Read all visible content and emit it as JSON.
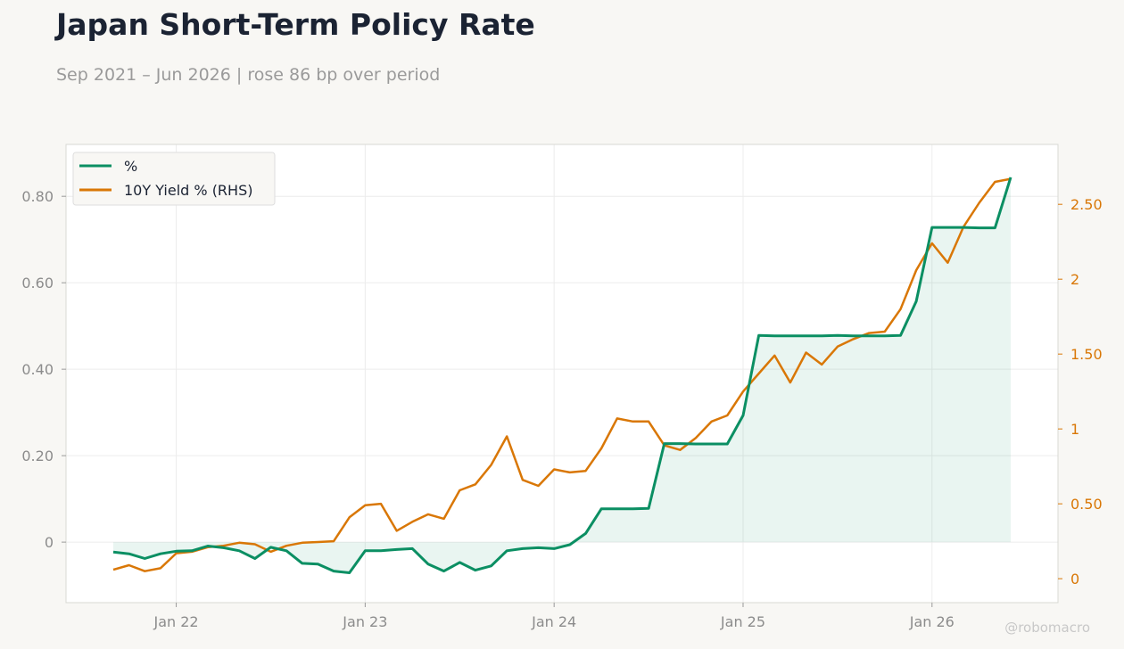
{
  "header": {
    "title": "Japan Short-Term Policy Rate",
    "subtitle": "Sep 2021 – Jun 2026 | rose 86 bp over period"
  },
  "watermark": "@robomacro",
  "colors": {
    "policy": "#0b8f63",
    "yield": "#d97706",
    "grid": "#ececec",
    "frame": "#d9d9d3"
  },
  "chart_data": {
    "type": "line",
    "title": "Japan Short-Term Policy Rate",
    "x_ticks": [
      "Jan 22",
      "Jan 23",
      "Jan 24",
      "Jan 25",
      "Jan 26"
    ],
    "x_tick_months": [
      "2022-01",
      "2023-01",
      "2024-01",
      "2025-01",
      "2026-01"
    ],
    "x_range": [
      "2021-06",
      "2026-09"
    ],
    "ylim_left": [
      -0.14,
      0.92
    ],
    "ylim_right": [
      -0.16,
      2.9
    ],
    "y_ticks_left": [
      {
        "value": 0.8,
        "label": "0.80"
      },
      {
        "value": 0.6,
        "label": "0.60"
      },
      {
        "value": 0.4,
        "label": "0.40"
      },
      {
        "value": 0.2,
        "label": "0.20"
      },
      {
        "value": 0.0,
        "label": "0"
      }
    ],
    "y_ticks_right": [
      {
        "value": 2.5,
        "label": "2.50"
      },
      {
        "value": 2.0,
        "label": "2"
      },
      {
        "value": 1.5,
        "label": "1.50"
      },
      {
        "value": 1.0,
        "label": "1"
      },
      {
        "value": 0.5,
        "label": "0.50"
      },
      {
        "value": 0.0,
        "label": "0"
      }
    ],
    "legend": {
      "placement": "top-left"
    },
    "grid": true,
    "series": [
      {
        "name": "%",
        "axis": "left",
        "fill_to_zero": true,
        "points": [
          [
            "2021-09",
            -0.023
          ],
          [
            "2021-10",
            -0.027
          ],
          [
            "2021-11",
            -0.038
          ],
          [
            "2021-12",
            -0.027
          ],
          [
            "2022-01",
            -0.021
          ],
          [
            "2022-02",
            -0.02
          ],
          [
            "2022-03",
            -0.009
          ],
          [
            "2022-04",
            -0.013
          ],
          [
            "2022-05",
            -0.02
          ],
          [
            "2022-06",
            -0.038
          ],
          [
            "2022-07",
            -0.012
          ],
          [
            "2022-08",
            -0.02
          ],
          [
            "2022-09",
            -0.049
          ],
          [
            "2022-10",
            -0.051
          ],
          [
            "2022-11",
            -0.067
          ],
          [
            "2022-12",
            -0.071
          ],
          [
            "2023-01",
            -0.02
          ],
          [
            "2023-02",
            -0.02
          ],
          [
            "2023-03",
            -0.017
          ],
          [
            "2023-04",
            -0.015
          ],
          [
            "2023-05",
            -0.051
          ],
          [
            "2023-06",
            -0.067
          ],
          [
            "2023-07",
            -0.047
          ],
          [
            "2023-08",
            -0.065
          ],
          [
            "2023-09",
            -0.055
          ],
          [
            "2023-10",
            -0.02
          ],
          [
            "2023-11",
            -0.015
          ],
          [
            "2023-12",
            -0.013
          ],
          [
            "2024-01",
            -0.015
          ],
          [
            "2024-02",
            -0.006
          ],
          [
            "2024-03",
            0.02
          ],
          [
            "2024-04",
            0.077
          ],
          [
            "2024-05",
            0.077
          ],
          [
            "2024-06",
            0.077
          ],
          [
            "2024-07",
            0.078
          ],
          [
            "2024-08",
            0.228
          ],
          [
            "2024-09",
            0.228
          ],
          [
            "2024-10",
            0.227
          ],
          [
            "2024-11",
            0.227
          ],
          [
            "2024-12",
            0.227
          ],
          [
            "2025-01",
            0.293
          ],
          [
            "2025-02",
            0.478
          ],
          [
            "2025-03",
            0.477
          ],
          [
            "2025-04",
            0.477
          ],
          [
            "2025-05",
            0.477
          ],
          [
            "2025-06",
            0.477
          ],
          [
            "2025-07",
            0.478
          ],
          [
            "2025-08",
            0.477
          ],
          [
            "2025-09",
            0.477
          ],
          [
            "2025-10",
            0.477
          ],
          [
            "2025-11",
            0.478
          ],
          [
            "2025-12",
            0.557
          ],
          [
            "2026-01",
            0.728
          ],
          [
            "2026-02",
            0.728
          ],
          [
            "2026-03",
            0.728
          ],
          [
            "2026-04",
            0.727
          ],
          [
            "2026-05",
            0.727
          ],
          [
            "2026-06",
            0.844
          ]
        ]
      },
      {
        "name": "10Y Yield % (RHS)",
        "axis": "right",
        "points": [
          [
            "2021-09",
            0.06
          ],
          [
            "2021-10",
            0.09
          ],
          [
            "2021-11",
            0.05
          ],
          [
            "2021-12",
            0.07
          ],
          [
            "2022-01",
            0.17
          ],
          [
            "2022-02",
            0.18
          ],
          [
            "2022-03",
            0.21
          ],
          [
            "2022-04",
            0.22
          ],
          [
            "2022-05",
            0.24
          ],
          [
            "2022-06",
            0.23
          ],
          [
            "2022-07",
            0.18
          ],
          [
            "2022-08",
            0.22
          ],
          [
            "2022-09",
            0.24
          ],
          [
            "2022-10",
            0.245
          ],
          [
            "2022-11",
            0.25
          ],
          [
            "2022-12",
            0.41
          ],
          [
            "2023-01",
            0.49
          ],
          [
            "2023-02",
            0.5
          ],
          [
            "2023-03",
            0.32
          ],
          [
            "2023-04",
            0.38
          ],
          [
            "2023-05",
            0.43
          ],
          [
            "2023-06",
            0.4
          ],
          [
            "2023-07",
            0.59
          ],
          [
            "2023-08",
            0.63
          ],
          [
            "2023-09",
            0.76
          ],
          [
            "2023-10",
            0.95
          ],
          [
            "2023-11",
            0.66
          ],
          [
            "2023-12",
            0.62
          ],
          [
            "2024-01",
            0.73
          ],
          [
            "2024-02",
            0.71
          ],
          [
            "2024-03",
            0.72
          ],
          [
            "2024-04",
            0.87
          ],
          [
            "2024-05",
            1.07
          ],
          [
            "2024-06",
            1.05
          ],
          [
            "2024-07",
            1.05
          ],
          [
            "2024-08",
            0.89
          ],
          [
            "2024-09",
            0.86
          ],
          [
            "2024-10",
            0.94
          ],
          [
            "2024-11",
            1.05
          ],
          [
            "2024-12",
            1.09
          ],
          [
            "2025-01",
            1.25
          ],
          [
            "2025-02",
            1.37
          ],
          [
            "2025-03",
            1.49
          ],
          [
            "2025-04",
            1.31
          ],
          [
            "2025-05",
            1.51
          ],
          [
            "2025-06",
            1.43
          ],
          [
            "2025-07",
            1.55
          ],
          [
            "2025-08",
            1.6
          ],
          [
            "2025-09",
            1.64
          ],
          [
            "2025-10",
            1.65
          ],
          [
            "2025-11",
            1.8
          ],
          [
            "2025-12",
            2.06
          ],
          [
            "2026-01",
            2.24
          ],
          [
            "2026-02",
            2.11
          ],
          [
            "2026-03",
            2.35
          ],
          [
            "2026-04",
            2.51
          ],
          [
            "2026-05",
            2.65
          ],
          [
            "2026-06",
            2.67
          ]
        ]
      }
    ]
  }
}
